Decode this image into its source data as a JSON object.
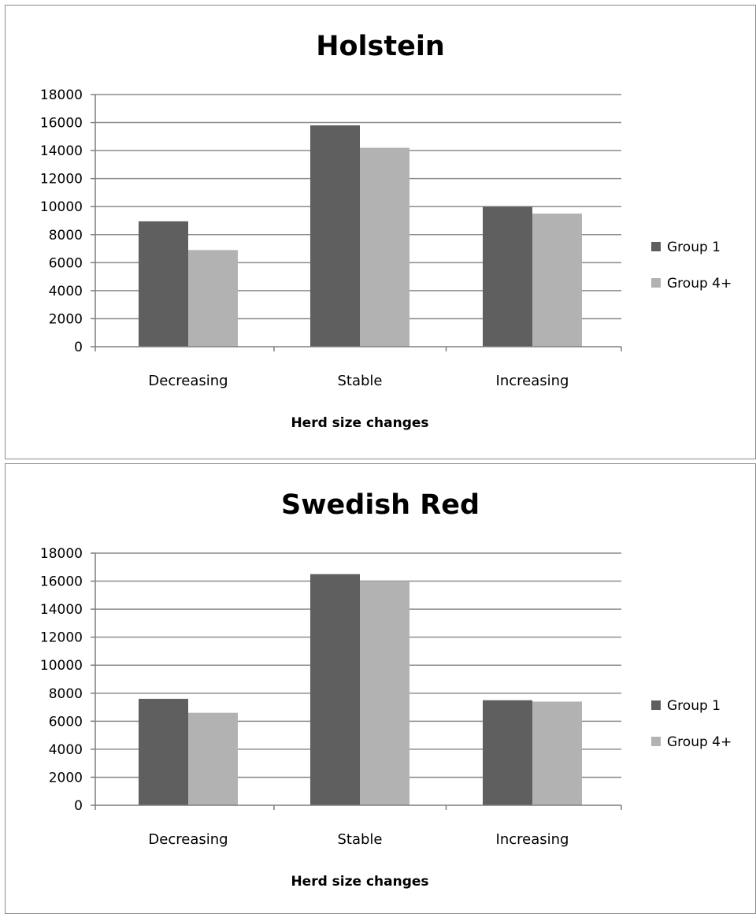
{
  "colors": {
    "group1": "#5f5f5f",
    "group4": "#b2b2b2",
    "gridline": "#8c8c8c",
    "axis": "#7f7f7f",
    "border": "#8a8a8a"
  },
  "chart_data": [
    {
      "type": "bar",
      "title": "Holstein",
      "xlabel": "Herd size changes",
      "ylabel": "",
      "categories": [
        "Decreasing",
        "Stable",
        "Increasing"
      ],
      "yticks": [
        "0",
        "2000",
        "4000",
        "6000",
        "8000",
        "10000",
        "12000",
        "14000",
        "16000",
        "18000"
      ],
      "ylim": [
        0,
        18000
      ],
      "grid": true,
      "legend_position": "right",
      "series": [
        {
          "name": "Group 1",
          "values": [
            8950,
            15800,
            10000
          ]
        },
        {
          "name": "Group 4+",
          "values": [
            6900,
            14200,
            9500
          ]
        }
      ]
    },
    {
      "type": "bar",
      "title": "Swedish Red",
      "xlabel": "Herd size changes",
      "ylabel": "",
      "categories": [
        "Decreasing",
        "Stable",
        "Increasing"
      ],
      "yticks": [
        "0",
        "2000",
        "4000",
        "6000",
        "8000",
        "10000",
        "12000",
        "14000",
        "16000",
        "18000"
      ],
      "ylim": [
        0,
        18000
      ],
      "grid": true,
      "legend_position": "right",
      "series": [
        {
          "name": "Group 1",
          "values": [
            7600,
            16500,
            7500
          ]
        },
        {
          "name": "Group 4+",
          "values": [
            6600,
            16000,
            7400
          ]
        }
      ]
    }
  ]
}
